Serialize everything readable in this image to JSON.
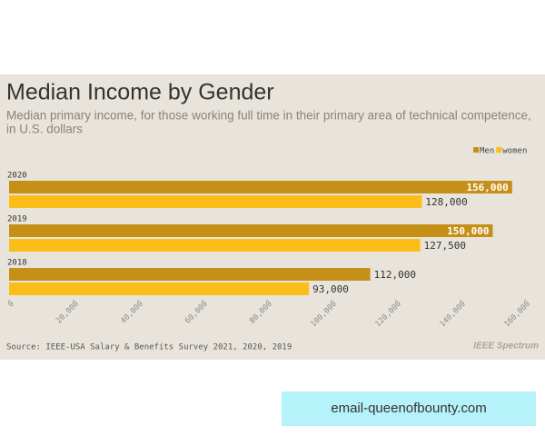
{
  "chart_data": {
    "type": "bar",
    "orientation": "horizontal",
    "title": "Median Income by Gender",
    "subtitle": [
      "Median primary income, for those working full time in their primary area of technical competence,",
      "in U.S. dollars"
    ],
    "categories": [
      "2020",
      "2019",
      "2018"
    ],
    "series": [
      {
        "name": "Men",
        "color": "#c68f18",
        "values": [
          156000,
          150000,
          112000
        ],
        "value_labels": [
          "156,000",
          "150,000",
          "112,000"
        ]
      },
      {
        "name": "women",
        "color": "#fbbd18",
        "values": [
          128000,
          127500,
          93000
        ],
        "value_labels": [
          "128,000",
          "127,500",
          "93,000"
        ]
      }
    ],
    "xlim": [
      0,
      160000
    ],
    "xticks": [
      0,
      {
        "value": 20000,
        "label": "20,000"
      },
      {
        "value": 40000,
        "label": "40,000"
      },
      {
        "value": 60000,
        "label": "60,000"
      },
      {
        "value": 80000,
        "label": "80,000"
      },
      {
        "value": 100000,
        "label": "100,000"
      },
      {
        "value": 120000,
        "label": "120,000"
      },
      {
        "value": 140000,
        "label": "140,000"
      },
      {
        "value": 160000,
        "label": "160,000"
      }
    ],
    "legend": "top-right",
    "source": "Source: IEEE-USA Salary & Benefits Survey 2021, 2020, 2019",
    "logo": "IEEE Spectrum"
  },
  "overlay": {
    "text": "email-queenofbounty.com"
  }
}
